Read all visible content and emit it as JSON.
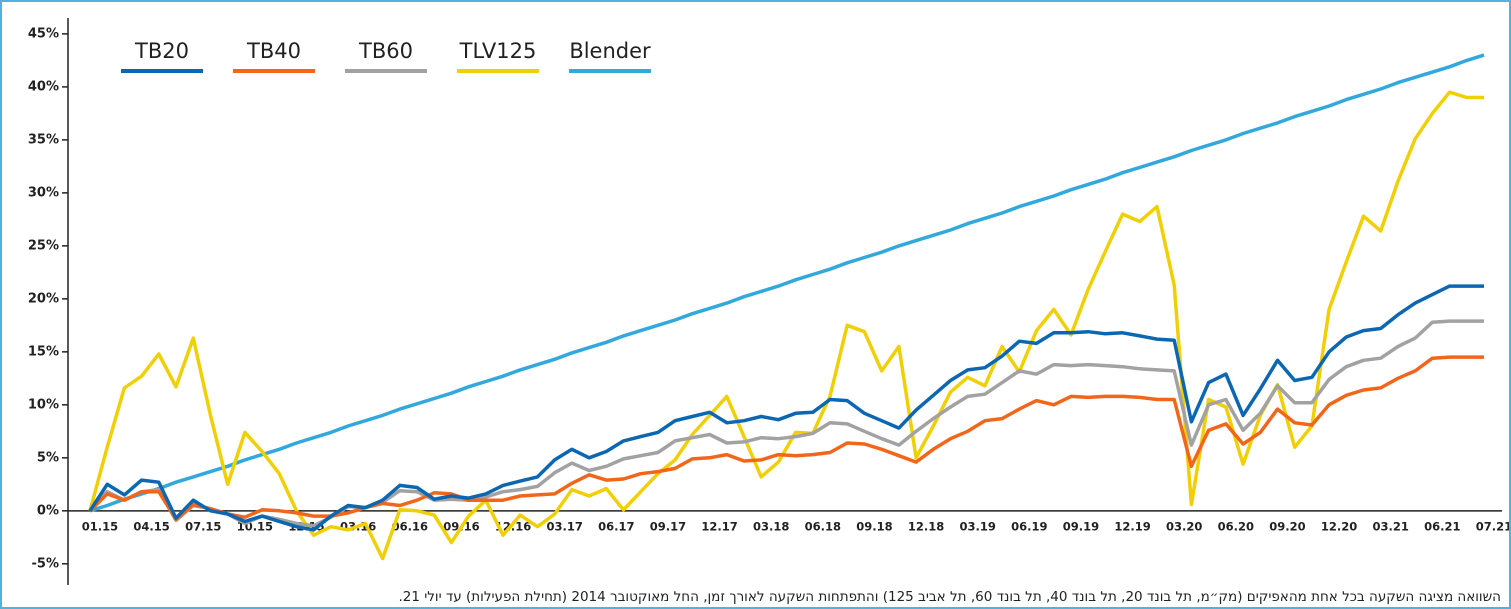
{
  "chart_data": {
    "type": "line",
    "categories": [
      "01.15",
      null,
      null,
      "04.15",
      null,
      null,
      "07.15",
      null,
      null,
      "10.15",
      null,
      null,
      "12.15",
      null,
      null,
      "03.16",
      null,
      null,
      "06.16",
      null,
      null,
      "09.16",
      null,
      null,
      "12.16",
      null,
      null,
      "03.17",
      null,
      null,
      "06.17",
      null,
      null,
      "09.17",
      null,
      null,
      "12.17",
      null,
      null,
      "03.18",
      null,
      null,
      "06.18",
      null,
      null,
      "09.18",
      null,
      null,
      "12.18",
      null,
      null,
      "03.19",
      null,
      null,
      "06.19",
      null,
      null,
      "09.19",
      null,
      null,
      "12.19",
      null,
      null,
      "03.20",
      null,
      null,
      "06.20",
      null,
      null,
      "09.20",
      null,
      null,
      "12.20",
      null,
      null,
      "03.21",
      null,
      null,
      "06.21",
      null,
      null,
      "07.21"
    ],
    "series": [
      {
        "name": "TB20",
        "color": "#0b67b2",
        "values": [
          0,
          2.5,
          1.5,
          2.9,
          2.7,
          -0.7,
          1.0,
          0,
          -0.3,
          -1.0,
          -0.5,
          -1.0,
          -1.5,
          -1.8,
          -0.5,
          0.5,
          0.3,
          1.0,
          2.4,
          2.2,
          1.1,
          1.4,
          1.2,
          1.6,
          2.4,
          2.8,
          3.2,
          4.8,
          5.8,
          5.0,
          5.6,
          6.6,
          7.0,
          7.4,
          8.5,
          8.9,
          9.3,
          8.3,
          8.5,
          8.9,
          8.6,
          9.2,
          9.3,
          10.5,
          10.4,
          9.2,
          8.5,
          7.8,
          9.5,
          10.9,
          12.3,
          13.3,
          13.5,
          14.6,
          16.0,
          15.8,
          16.8,
          16.8,
          16.9,
          16.7,
          16.8,
          16.5,
          16.2,
          16.1,
          8.4,
          12.1,
          12.9,
          9.0,
          11.5,
          14.2,
          12.3,
          12.6,
          15.0,
          16.4,
          17.0,
          17.2,
          18.5,
          19.6,
          20.4,
          21.2,
          21.2,
          21.2
        ]
      },
      {
        "name": "TB40",
        "color": "#f2661b",
        "values": [
          0,
          1.6,
          1.0,
          1.8,
          1.8,
          -0.8,
          0.6,
          0.2,
          -0.3,
          -0.6,
          0.1,
          0,
          -0.2,
          -0.5,
          -0.5,
          -0.2,
          0.3,
          0.7,
          0.5,
          1.0,
          1.7,
          1.6,
          1.0,
          1.0,
          1.0,
          1.4,
          1.5,
          1.6,
          2.6,
          3.4,
          2.9,
          3.0,
          3.5,
          3.7,
          4.0,
          4.9,
          5.0,
          5.3,
          4.7,
          4.8,
          5.3,
          5.2,
          5.3,
          5.5,
          6.4,
          6.3,
          5.8,
          5.2,
          4.6,
          5.8,
          6.8,
          7.5,
          8.5,
          8.7,
          9.6,
          10.4,
          10.0,
          10.8,
          10.7,
          10.8,
          10.8,
          10.7,
          10.5,
          10.5,
          4.2,
          7.6,
          8.2,
          6.3,
          7.4,
          9.6,
          8.3,
          8.1,
          10.0,
          10.9,
          11.4,
          11.6,
          12.5,
          13.2,
          14.4,
          14.5,
          14.5,
          14.5
        ]
      },
      {
        "name": "TB60",
        "color": "#a2a2a2",
        "values": [
          0,
          1.8,
          1.0,
          1.8,
          2.0,
          -0.9,
          0.5,
          0.2,
          -0.3,
          -1.2,
          -0.5,
          -0.8,
          -1.2,
          -1.4,
          -0.6,
          0.4,
          0.3,
          0.8,
          1.9,
          1.8,
          1.0,
          1.1,
          1.0,
          1.3,
          1.8,
          2.0,
          2.3,
          3.6,
          4.5,
          3.8,
          4.2,
          4.9,
          5.2,
          5.5,
          6.6,
          6.9,
          7.2,
          6.4,
          6.5,
          6.9,
          6.8,
          7.0,
          7.3,
          8.3,
          8.2,
          7.5,
          6.8,
          6.2,
          7.5,
          8.7,
          9.8,
          10.8,
          11.0,
          12.1,
          13.2,
          12.9,
          13.8,
          13.7,
          13.8,
          13.7,
          13.6,
          13.4,
          13.3,
          13.2,
          6.2,
          10.0,
          10.5,
          7.6,
          9.2,
          11.8,
          10.2,
          10.2,
          12.4,
          13.6,
          14.2,
          14.4,
          15.5,
          16.3,
          17.8,
          17.9,
          17.9,
          17.9
        ]
      },
      {
        "name": "TLV125",
        "color": "#f1cf05",
        "values": [
          0,
          6,
          11.6,
          12.7,
          14.8,
          11.7,
          16.3,
          9,
          2.5,
          7.4,
          5.6,
          3.5,
          0,
          -2.3,
          -1.5,
          -1.8,
          -1.2,
          -4.5,
          0.1,
          0,
          -0.4,
          -3.0,
          -0.5,
          1.0,
          -2.3,
          -0.4,
          -1.5,
          -0.3,
          2.0,
          1.4,
          2.1,
          0.1,
          1.8,
          3.5,
          4.8,
          7.2,
          9.0,
          10.8,
          7,
          3.2,
          4.6,
          7.4,
          7.3,
          10.8,
          17.5,
          16.9,
          13.2,
          15.5,
          5.0,
          8.0,
          11.2,
          12.6,
          11.8,
          15.5,
          13.1,
          17.0,
          19.0,
          16.6,
          20.9,
          24.5,
          28.0,
          27.3,
          28.7,
          21.3,
          0.6,
          10.5,
          9.8,
          4.4,
          9.0,
          11.9,
          6.0,
          8.0,
          19.0,
          23.5,
          27.8,
          26.4,
          31.1,
          35.1,
          37.5,
          39.5,
          39.0,
          39.0
        ]
      },
      {
        "name": "Blender",
        "color": "#33a8dd",
        "values": [
          0,
          0.5,
          1.1,
          1.6,
          2.1,
          2.7,
          3.2,
          3.7,
          4.2,
          4.8,
          5.3,
          5.8,
          6.4,
          6.9,
          7.4,
          8.0,
          8.5,
          9.0,
          9.6,
          10.1,
          10.6,
          11.1,
          11.7,
          12.2,
          12.7,
          13.3,
          13.8,
          14.3,
          14.9,
          15.4,
          15.9,
          16.5,
          17.0,
          17.5,
          18.0,
          18.6,
          19.1,
          19.6,
          20.2,
          20.7,
          21.2,
          21.8,
          22.3,
          22.8,
          23.4,
          23.9,
          24.4,
          25.0,
          25.5,
          26.0,
          26.5,
          27.1,
          27.6,
          28.1,
          28.7,
          29.2,
          29.7,
          30.3,
          30.8,
          31.3,
          31.9,
          32.4,
          32.9,
          33.4,
          34.0,
          34.5,
          35.0,
          35.6,
          36.1,
          36.6,
          37.2,
          37.7,
          38.2,
          38.8,
          39.3,
          39.8,
          40.4,
          40.9,
          41.4,
          41.9,
          42.5,
          43.0
        ]
      }
    ],
    "ylim": [
      -7,
      46.5
    ],
    "yticks": [
      {
        "value": -5,
        "label": "-5%"
      },
      {
        "value": 0,
        "label": "0%"
      },
      {
        "value": 5,
        "label": "5%"
      },
      {
        "value": 10,
        "label": "10%"
      },
      {
        "value": 15,
        "label": "15%"
      },
      {
        "value": 20,
        "label": "20%"
      },
      {
        "value": 25,
        "label": "25%"
      },
      {
        "value": 30,
        "label": "30%"
      },
      {
        "value": 35,
        "label": "35%"
      },
      {
        "value": 40,
        "label": "40%"
      },
      {
        "value": 45,
        "label": "45%"
      }
    ],
    "legend": "top-left",
    "caption": "השוואה מציגה השקעה בכל אחת מהאפיקים (מק״מ, תל בונד 20, תל בונד 40, תל בונד 60, תל אביב 125) והתפתחות השקעה לאורך זמן, החל מאוקטובר 2014 (תחילת הפעילות) עד יולי 21."
  }
}
